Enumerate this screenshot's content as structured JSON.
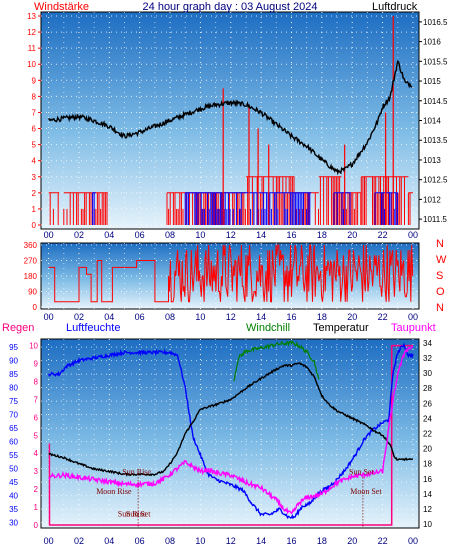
{
  "chart_data": [
    {
      "type": "line",
      "title": "24 hour graph day : 03 August 2024",
      "left_label": "Windstärke",
      "right_label": "Luftdruck",
      "x_ticks": [
        "00",
        "02",
        "04",
        "06",
        "08",
        "10",
        "12",
        "14",
        "16",
        "18",
        "20",
        "22",
        "00"
      ],
      "y_left_ticks": [
        "0",
        "1",
        "2",
        "3",
        "4",
        "5",
        "6",
        "7",
        "8",
        "9",
        "10",
        "11",
        "12",
        "13"
      ],
      "y_left_range": [
        0,
        13
      ],
      "y_right_ticks": [
        "1011.5",
        "1012",
        "1012.5",
        "1013",
        "1013.5",
        "1014",
        "1014.5",
        "1015",
        "1015.5",
        "1016",
        "1016.5"
      ],
      "y_right_range": [
        1011.25,
        1016.75
      ],
      "colors": {
        "pressure": "#000000",
        "wind": "#ff0000",
        "gust": "#0000ff"
      },
      "pressure": {
        "x": [
          0,
          1,
          2,
          3,
          4,
          5,
          6,
          7,
          8,
          9,
          10,
          11,
          12,
          13,
          14,
          15,
          16,
          17,
          18,
          19,
          19.5,
          20,
          21,
          21.7,
          22,
          22.5,
          22.8,
          23,
          23.5,
          24
        ],
        "y": [
          1014.0,
          1014.05,
          1014.1,
          1014.0,
          1013.85,
          1013.6,
          1013.7,
          1013.85,
          1014.0,
          1014.15,
          1014.3,
          1014.4,
          1014.45,
          1014.4,
          1014.2,
          1013.9,
          1013.6,
          1013.35,
          1013.0,
          1012.7,
          1012.75,
          1012.9,
          1013.45,
          1014.0,
          1014.35,
          1014.6,
          1015.15,
          1015.5,
          1014.95,
          1014.9
        ]
      },
      "wind_segments": [
        {
          "from": 0.0,
          "to": 0.7,
          "level": 2
        },
        {
          "from": 1.0,
          "to": 3.9,
          "level": 2
        },
        {
          "from": 7.8,
          "to": 13.0,
          "level": 2
        },
        {
          "from": 13.0,
          "to": 16.2,
          "level": 3
        },
        {
          "from": 16.2,
          "to": 17.8,
          "level": 2
        },
        {
          "from": 17.8,
          "to": 19.3,
          "level": 3
        },
        {
          "from": 19.3,
          "to": 20.6,
          "level": 2
        },
        {
          "from": 20.6,
          "to": 23.7,
          "level": 3
        },
        {
          "from": 23.7,
          "to": 24.0,
          "level": 2
        }
      ],
      "gust_segments": [
        {
          "from": 2.9,
          "to": 3.1,
          "level": 2
        },
        {
          "from": 9.0,
          "to": 13.2,
          "level": 2
        },
        {
          "from": 13.2,
          "to": 17.3,
          "level": 2
        },
        {
          "from": 18.8,
          "to": 19.9,
          "level": 2
        },
        {
          "from": 21.5,
          "to": 23.0,
          "level": 2
        }
      ],
      "wind_peaks": [
        {
          "x": 22.7,
          "level": 13
        },
        {
          "x": 11.5,
          "level": 8.5
        },
        {
          "x": 13.2,
          "level": 7.5
        },
        {
          "x": 13.8,
          "level": 6
        },
        {
          "x": 14.5,
          "level": 5
        },
        {
          "x": 19.5,
          "level": 5
        },
        {
          "x": 22.2,
          "level": 7
        }
      ]
    },
    {
      "type": "line",
      "title": "",
      "x_ticks": [
        "00",
        "02",
        "04",
        "06",
        "08",
        "10",
        "12",
        "14",
        "16",
        "18",
        "20",
        "22",
        "00"
      ],
      "y_left_ticks": [
        "0",
        "90",
        "180",
        "270",
        "360"
      ],
      "y_range": [
        0,
        360
      ],
      "right_labels": [
        "N",
        "W",
        "S",
        "O",
        "N"
      ],
      "colors": {
        "direction": "#ff0000"
      },
      "direction_steps": [
        {
          "x": 0.0,
          "y": 230
        },
        {
          "x": 0.4,
          "y": 30
        },
        {
          "x": 2.0,
          "y": 230
        },
        {
          "x": 2.5,
          "y": 190
        },
        {
          "x": 2.8,
          "y": 30
        },
        {
          "x": 3.2,
          "y": 270
        },
        {
          "x": 3.5,
          "y": 30
        },
        {
          "x": 4.2,
          "y": 230
        },
        {
          "x": 5.8,
          "y": 270
        },
        {
          "x": 7.0,
          "y": 30
        },
        {
          "x": 7.9,
          "y": 230
        },
        {
          "x": 24.0,
          "y": 230
        }
      ],
      "noisy_range": {
        "from": 7.9,
        "to": 24.0,
        "min": 30,
        "max": 360
      }
    },
    {
      "type": "line",
      "title": "",
      "labels": {
        "rain": "Regen",
        "humidity": "Luftfeuchte",
        "windchill": "Windchill",
        "temperature": "Temperatur",
        "dewpoint": "Taupunkt"
      },
      "x_ticks": [
        "00",
        "02",
        "04",
        "06",
        "08",
        "10",
        "12",
        "14",
        "16",
        "18",
        "20",
        "22",
        "00"
      ],
      "y_hum_ticks": [
        "30",
        "35",
        "40",
        "45",
        "50",
        "55",
        "60",
        "65",
        "70",
        "75",
        "80",
        "85",
        "90",
        "95"
      ],
      "y_hum_range": [
        28,
        98
      ],
      "y_rain_ticks": [
        "0",
        "1",
        "2",
        "3",
        "4",
        "5",
        "6",
        "7",
        "8",
        "9",
        "10"
      ],
      "y_rain_range": [
        0,
        10.2
      ],
      "y_temp_ticks": [
        "10",
        "12",
        "14",
        "16",
        "18",
        "20",
        "22",
        "24",
        "26",
        "28",
        "30",
        "32",
        "34"
      ],
      "y_temp_range": [
        9.5,
        34.5
      ],
      "colors": {
        "humidity": "#0000ff",
        "temperature": "#000000",
        "windchill": "#008000",
        "dewpoint": "#ff00ff",
        "rain": "#ff0080",
        "moon": "#800000"
      },
      "annotations": [
        {
          "text": "Sun Rise",
          "x": 5.8,
          "y_temp": 16.6
        },
        {
          "text": "Moon Rise",
          "x": 4.3,
          "y_temp": 14.0
        },
        {
          "text": "Sun Set",
          "x": 20.6,
          "y_temp": 16.6
        },
        {
          "text": "Moon Set",
          "x": 20.9,
          "y_temp": 14.0
        },
        {
          "text": "Sun Rise",
          "x": 5.5,
          "y_temp": 11.0
        },
        {
          "text": "Sun Set",
          "x": 5.9,
          "y_temp": 11.0
        }
      ],
      "humidity": {
        "x": [
          0,
          0.7,
          1.2,
          2,
          3,
          4,
          5,
          6,
          7,
          8,
          8.5,
          9,
          9.5,
          10,
          10.5,
          11,
          12,
          12.8,
          13.4,
          14,
          14.6,
          15.2,
          15.8,
          16.2,
          16.7,
          17.2,
          17.8,
          18.4,
          19,
          19.6,
          20.2,
          20.8,
          21.3,
          22,
          22.4,
          22.7,
          23,
          23.4,
          23.7,
          24
        ],
        "y": [
          85,
          85,
          88,
          90,
          91,
          92,
          93,
          93,
          93,
          93,
          92,
          80,
          62,
          55,
          48,
          46,
          44,
          42,
          37,
          33,
          33,
          35,
          32,
          32,
          36,
          37,
          41,
          43,
          46,
          50,
          55,
          61,
          64,
          67,
          68,
          86,
          93,
          96,
          92,
          92
        ]
      },
      "temperature": {
        "x": [
          0,
          1,
          2,
          3,
          4,
          5,
          6,
          7,
          7.6,
          8,
          8.5,
          9,
          9.5,
          10,
          11,
          12,
          13,
          14,
          15,
          15.5,
          16,
          16.5,
          17,
          17.5,
          18,
          18.5,
          19,
          20,
          21,
          21.5,
          22,
          22.5,
          22.8,
          23,
          23.5,
          24
        ],
        "y": [
          19.3,
          18.8,
          18.0,
          17.3,
          17.0,
          16.6,
          16.6,
          16.6,
          17.0,
          18.0,
          19.5,
          22.0,
          23.5,
          25.2,
          25.8,
          26.5,
          28.0,
          29.3,
          30.5,
          31.0,
          31.0,
          31.3,
          30.8,
          29.5,
          27.0,
          25.8,
          25.0,
          24.0,
          23.0,
          22.3,
          21.8,
          20.5,
          18.8,
          18.5,
          18.6,
          18.5
        ]
      },
      "windchill": {
        "x": [
          12.2,
          12.5,
          13,
          14,
          15,
          16,
          16.5,
          17,
          17.5,
          17.8
        ],
        "y": [
          29.0,
          32.0,
          32.9,
          33.3,
          33.8,
          34.0,
          33.6,
          32.8,
          31.5,
          29.0
        ]
      },
      "dewpoint": {
        "x": [
          0,
          1,
          2,
          3,
          4,
          5,
          6,
          7,
          7.5,
          8,
          8.5,
          9,
          9.5,
          10,
          10.5,
          11,
          12,
          13,
          14,
          15,
          15.5,
          16,
          16.5,
          17,
          18,
          19,
          20,
          21,
          22,
          22.5,
          23,
          23.5,
          24
        ],
        "y": [
          16.3,
          16.5,
          16.2,
          15.9,
          15.6,
          15.3,
          15.3,
          15.4,
          15.9,
          16.6,
          17.4,
          18.2,
          17.6,
          17.0,
          17.2,
          16.8,
          16.5,
          15.5,
          14.8,
          13.2,
          12.0,
          11.3,
          12.8,
          13.5,
          14.0,
          15.5,
          16.3,
          16.6,
          17.0,
          24.0,
          30.0,
          33.0,
          33.5
        ]
      },
      "rain_steps": [
        {
          "x": 0.0,
          "y": 4.5
        },
        {
          "x": 0.05,
          "y": 4.5
        },
        {
          "x": 0.06,
          "y": 0
        },
        {
          "x": 22.6,
          "y": 0
        },
        {
          "x": 22.6,
          "y": 10
        },
        {
          "x": 24.0,
          "y": 10
        }
      ]
    }
  ]
}
